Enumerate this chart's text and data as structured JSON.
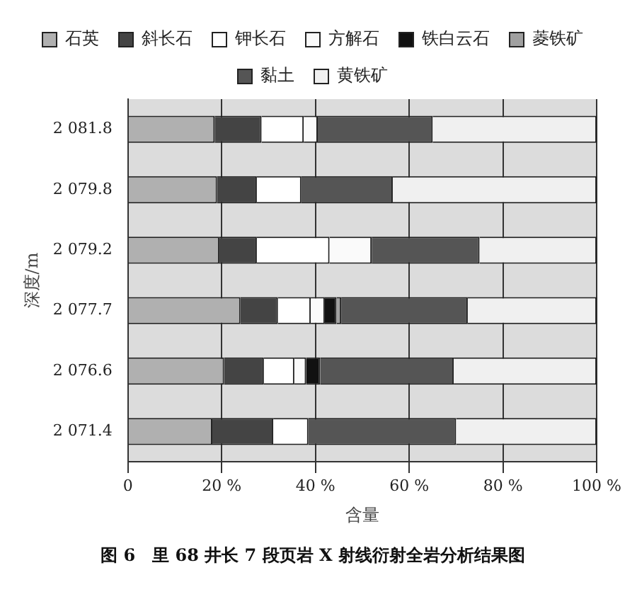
{
  "chart_data": {
    "type": "bar",
    "orientation": "horizontal",
    "stacked": true,
    "title": "图 6　里 68 井长 7 段页岩 X 射线衍射全岩分析结果图",
    "xlabel": "含量",
    "ylabel": "深度/m",
    "categories": [
      "2 081.8",
      "2 079.8",
      "2 079.2",
      "2 077.7",
      "2 076.6",
      "2 071.4"
    ],
    "series": [
      {
        "name": "石英",
        "color": "#b0b0b0",
        "values": [
          18.5,
          19,
          19.5,
          24,
          20.5,
          18
        ]
      },
      {
        "name": "斜长石",
        "color": "#444444",
        "values": [
          10,
          8.5,
          8,
          8,
          8.5,
          13
        ]
      },
      {
        "name": "钾长石",
        "color": "#ffffff",
        "values": [
          9,
          9.5,
          15.5,
          7,
          6.5,
          7.5
        ]
      },
      {
        "name": "方解石",
        "color": "#fafafa",
        "values": [
          3,
          null,
          9,
          3,
          2.5,
          null
        ]
      },
      {
        "name": "铁白云石",
        "color": "#111111",
        "values": [
          null,
          null,
          null,
          2.5,
          3,
          null
        ]
      },
      {
        "name": "菱铁矿",
        "color": "#a0a0a0",
        "values": [
          null,
          null,
          null,
          1,
          null,
          null
        ]
      },
      {
        "name": "黏土",
        "color": "#555555",
        "values": [
          24.5,
          19.5,
          23,
          27,
          28.5,
          31.5
        ]
      },
      {
        "name": "黄铁矿",
        "color": "#f0f0f0",
        "values": [
          35,
          43.5,
          25,
          27.5,
          30.5,
          30
        ]
      }
    ],
    "xlim": [
      0,
      100
    ],
    "xticks": [
      {
        "value": 0,
        "label": "0"
      },
      {
        "value": 20,
        "label": "20 %"
      },
      {
        "value": 40,
        "label": "40 %"
      },
      {
        "value": 60,
        "label": "60 %"
      },
      {
        "value": 80,
        "label": "80 %"
      },
      {
        "value": 100,
        "label": "100 %"
      }
    ],
    "grid": "x",
    "legend": "top"
  }
}
